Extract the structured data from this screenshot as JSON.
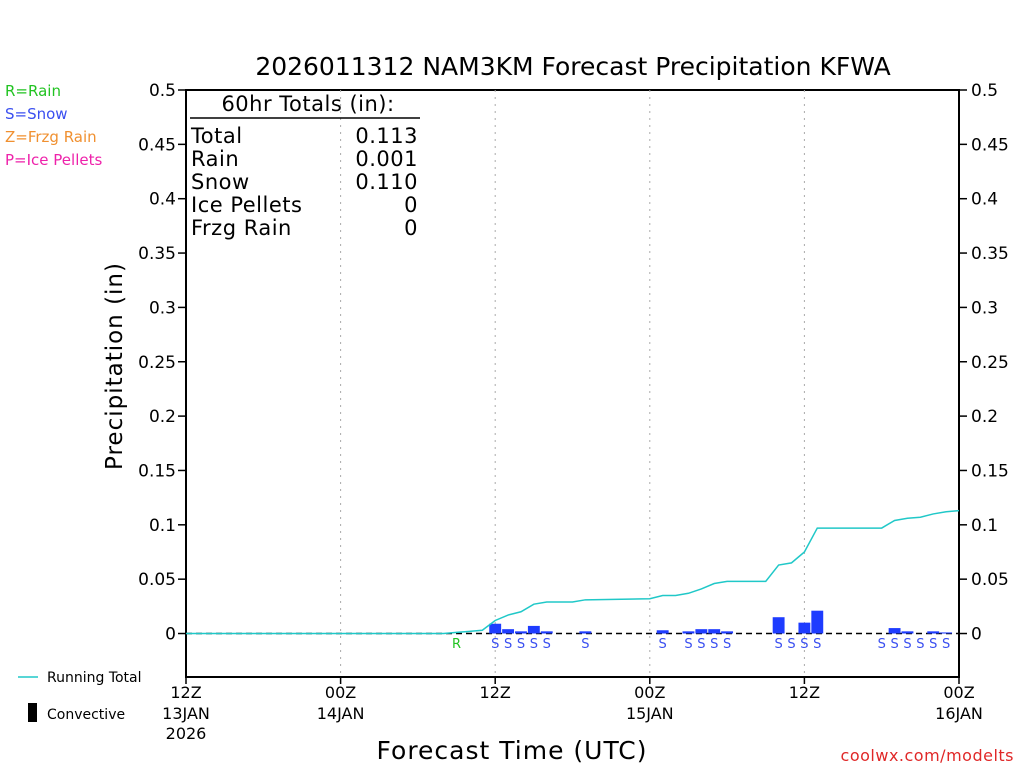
{
  "chart_data": {
    "type": "bar",
    "title": "2026011312 NAM3KM Forecast Precipitation KFWA",
    "xlabel": "Forecast Time (UTC)",
    "ylabel": "Precipitation (in)",
    "ylim": [
      -0.04,
      0.5
    ],
    "xlim_hours": [
      0,
      60
    ],
    "y_ticks": [
      {
        "v": 0.5,
        "label": "0.5"
      },
      {
        "v": 0.45,
        "label": "0.45"
      },
      {
        "v": 0.4,
        "label": "0.4"
      },
      {
        "v": 0.35,
        "label": "0.35"
      },
      {
        "v": 0.3,
        "label": "0.3"
      },
      {
        "v": 0.25,
        "label": "0.25"
      },
      {
        "v": 0.2,
        "label": "0.2"
      },
      {
        "v": 0.15,
        "label": "0.15"
      },
      {
        "v": 0.1,
        "label": "0.1"
      },
      {
        "v": 0.05,
        "label": "0.05"
      },
      {
        "v": 0,
        "label": "0"
      }
    ],
    "x_ticks": [
      {
        "hour": 0,
        "time": "12Z",
        "date": "13JAN",
        "year": "2026"
      },
      {
        "hour": 12,
        "time": "00Z",
        "date": "14JAN",
        "year": ""
      },
      {
        "hour": 24,
        "time": "12Z",
        "date": "",
        "year": ""
      },
      {
        "hour": 36,
        "time": "00Z",
        "date": "15JAN",
        "year": ""
      },
      {
        "hour": 48,
        "time": "12Z",
        "date": "",
        "year": ""
      },
      {
        "hour": 60,
        "time": "00Z",
        "date": "16JAN",
        "year": ""
      }
    ],
    "gridlines_hours": [
      12,
      24,
      36,
      48
    ],
    "totals_box": {
      "heading": "60hr Totals (in):",
      "rows": [
        {
          "label": "Total",
          "value": "0.113"
        },
        {
          "label": "Rain",
          "value": "0.001"
        },
        {
          "label": "Snow",
          "value": "0.110"
        },
        {
          "label": "Ice Pellets",
          "value": "0"
        },
        {
          "label": "Frzg Rain",
          "value": "0"
        }
      ]
    },
    "type_legend": [
      {
        "text": "R=Rain",
        "color": "#22c322"
      },
      {
        "text": "S=Snow",
        "color": "#3a4ff0"
      },
      {
        "text": "Z=Frzg Rain",
        "color": "#f09030"
      },
      {
        "text": "P=Ice Pellets",
        "color": "#ee22aa"
      }
    ],
    "bottom_legend": {
      "running_total": "Running Total",
      "convective": "Convective"
    },
    "colors": {
      "bars": "#1e3cff",
      "running_total": "#20c8c8",
      "rain": "#22c322",
      "snow": "#3a4ff0"
    },
    "hourly_precip": [
      {
        "hour": 24,
        "value": 0.009
      },
      {
        "hour": 25,
        "value": 0.004
      },
      {
        "hour": 26,
        "value": 0.002
      },
      {
        "hour": 27,
        "value": 0.007
      },
      {
        "hour": 28,
        "value": 0.002
      },
      {
        "hour": 31,
        "value": 0.002
      },
      {
        "hour": 37,
        "value": 0.003
      },
      {
        "hour": 39,
        "value": 0.002
      },
      {
        "hour": 40,
        "value": 0.004
      },
      {
        "hour": 41,
        "value": 0.004
      },
      {
        "hour": 42,
        "value": 0.002
      },
      {
        "hour": 46,
        "value": 0.015
      },
      {
        "hour": 48,
        "value": 0.01
      },
      {
        "hour": 49,
        "value": 0.021
      },
      {
        "hour": 55,
        "value": 0.005
      },
      {
        "hour": 56,
        "value": 0.002
      },
      {
        "hour": 58,
        "value": 0.002
      },
      {
        "hour": 59,
        "value": 0.001
      }
    ],
    "running_total": [
      {
        "hour": 0,
        "value": 0
      },
      {
        "hour": 20,
        "value": 0
      },
      {
        "hour": 21,
        "value": 0.001
      },
      {
        "hour": 22,
        "value": 0.002
      },
      {
        "hour": 23,
        "value": 0.003
      },
      {
        "hour": 24,
        "value": 0.012
      },
      {
        "hour": 25,
        "value": 0.017
      },
      {
        "hour": 26,
        "value": 0.02
      },
      {
        "hour": 27,
        "value": 0.027
      },
      {
        "hour": 28,
        "value": 0.029
      },
      {
        "hour": 30,
        "value": 0.029
      },
      {
        "hour": 31,
        "value": 0.031
      },
      {
        "hour": 36,
        "value": 0.032
      },
      {
        "hour": 37,
        "value": 0.035
      },
      {
        "hour": 38,
        "value": 0.035
      },
      {
        "hour": 39,
        "value": 0.037
      },
      {
        "hour": 40,
        "value": 0.041
      },
      {
        "hour": 41,
        "value": 0.046
      },
      {
        "hour": 42,
        "value": 0.048
      },
      {
        "hour": 45,
        "value": 0.048
      },
      {
        "hour": 46,
        "value": 0.063
      },
      {
        "hour": 47,
        "value": 0.065
      },
      {
        "hour": 48,
        "value": 0.075
      },
      {
        "hour": 49,
        "value": 0.097
      },
      {
        "hour": 54,
        "value": 0.097
      },
      {
        "hour": 55,
        "value": 0.104
      },
      {
        "hour": 56,
        "value": 0.106
      },
      {
        "hour": 57,
        "value": 0.107
      },
      {
        "hour": 58,
        "value": 0.11
      },
      {
        "hour": 59,
        "value": 0.112
      },
      {
        "hour": 60,
        "value": 0.113
      }
    ],
    "type_markers": [
      {
        "hour": 21,
        "letter": "R",
        "kind": "rain"
      },
      {
        "hour": 24,
        "letter": "S",
        "kind": "snow"
      },
      {
        "hour": 25,
        "letter": "S",
        "kind": "snow"
      },
      {
        "hour": 26,
        "letter": "S",
        "kind": "snow"
      },
      {
        "hour": 27,
        "letter": "S",
        "kind": "snow"
      },
      {
        "hour": 28,
        "letter": "S",
        "kind": "snow"
      },
      {
        "hour": 31,
        "letter": "S",
        "kind": "snow"
      },
      {
        "hour": 37,
        "letter": "S",
        "kind": "snow"
      },
      {
        "hour": 39,
        "letter": "S",
        "kind": "snow"
      },
      {
        "hour": 40,
        "letter": "S",
        "kind": "snow"
      },
      {
        "hour": 41,
        "letter": "S",
        "kind": "snow"
      },
      {
        "hour": 42,
        "letter": "S",
        "kind": "snow"
      },
      {
        "hour": 46,
        "letter": "S",
        "kind": "snow"
      },
      {
        "hour": 47,
        "letter": "S",
        "kind": "snow"
      },
      {
        "hour": 48,
        "letter": "S",
        "kind": "snow"
      },
      {
        "hour": 49,
        "letter": "S",
        "kind": "snow"
      },
      {
        "hour": 54,
        "letter": "S",
        "kind": "snow"
      },
      {
        "hour": 55,
        "letter": "S",
        "kind": "snow"
      },
      {
        "hour": 56,
        "letter": "S",
        "kind": "snow"
      },
      {
        "hour": 57,
        "letter": "S",
        "kind": "snow"
      },
      {
        "hour": 58,
        "letter": "S",
        "kind": "snow"
      },
      {
        "hour": 59,
        "letter": "S",
        "kind": "snow"
      }
    ],
    "credit": "coolwx.com/modelts"
  }
}
